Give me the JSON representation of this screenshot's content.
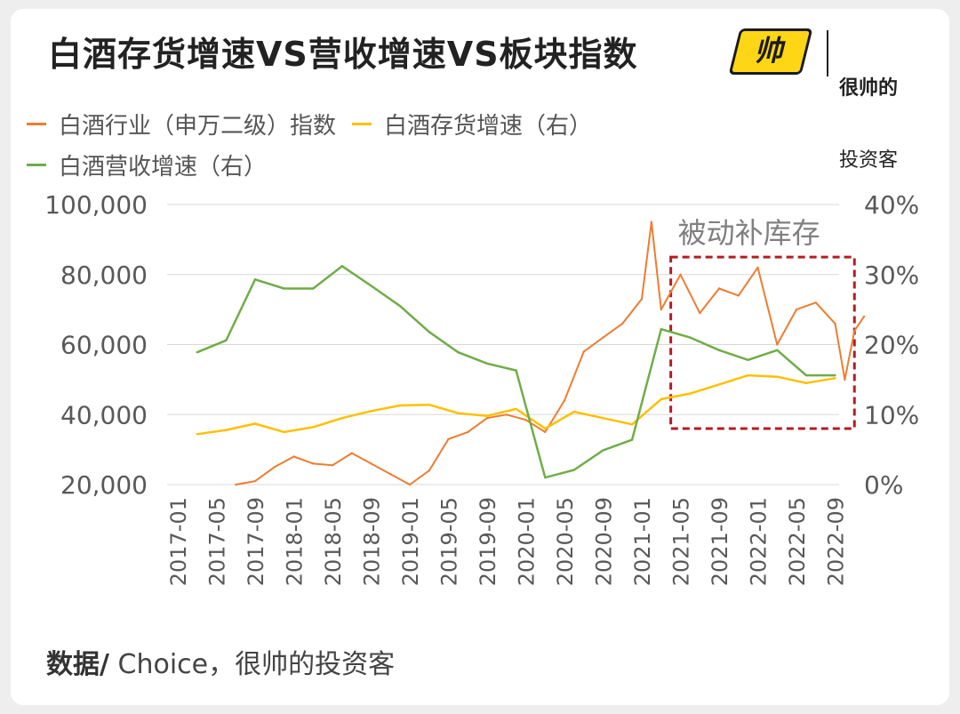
{
  "header": {
    "title": "白酒存货增速VS营收增速VS板块指数"
  },
  "logo": {
    "badge_text": "帅",
    "line1": "很帅的",
    "line2": "投资客",
    "badge_color": "#ffd616"
  },
  "footer": {
    "source_label": "数据/",
    "source_text": " Choice，很帅的投资客"
  },
  "chart_data": {
    "type": "line",
    "title": "白酒存货增速VS营收增速VS板块指数",
    "x_ticks": [
      "2017-01",
      "2017-05",
      "2017-09",
      "2018-01",
      "2018-05",
      "2018-09",
      "2019-01",
      "2019-05",
      "2019-09",
      "2020-01",
      "2020-05",
      "2020-09",
      "2021-01",
      "2021-05",
      "2021-09",
      "2022-01",
      "2022-05",
      "2022-09"
    ],
    "y_left": {
      "ticks": [
        "20,000",
        "40,000",
        "60,000",
        "80,000",
        "100,000"
      ],
      "range": [
        20000,
        100000
      ]
    },
    "y_right": {
      "ticks": [
        "0%",
        "10%",
        "20%",
        "30%",
        "40%"
      ],
      "range": [
        0,
        40
      ]
    },
    "legend_position": "top-left",
    "grid": "horizontal",
    "annotation": {
      "text": "被动补库存",
      "x_start": "2021-04",
      "x_end": "2022-11",
      "y_top_pct": 32.5,
      "y_bottom_pct": 8,
      "color": "#b01e23"
    },
    "series": [
      {
        "name": "白酒行业（申万二级）指数",
        "axis": "left",
        "color": "#ed7d31",
        "x": [
          "2017-07",
          "2017-09",
          "2017-11",
          "2018-01",
          "2018-03",
          "2018-05",
          "2018-07",
          "2018-09",
          "2018-11",
          "2019-01",
          "2019-03",
          "2019-05",
          "2019-07",
          "2019-09",
          "2019-11",
          "2020-01",
          "2020-03",
          "2020-05",
          "2020-07",
          "2020-09",
          "2020-11",
          "2021-01",
          "2021-02",
          "2021-03",
          "2021-05",
          "2021-07",
          "2021-09",
          "2021-11",
          "2022-01",
          "2022-03",
          "2022-05",
          "2022-07",
          "2022-09",
          "2022-10",
          "2022-11",
          "2022-12"
        ],
        "values": [
          20000,
          21000,
          25000,
          28000,
          26000,
          25500,
          29000,
          26000,
          23000,
          20000,
          24000,
          33000,
          35000,
          39000,
          40000,
          38500,
          35000,
          44000,
          58000,
          62000,
          66000,
          73000,
          95000,
          70000,
          80000,
          69000,
          76000,
          74000,
          82000,
          60000,
          70000,
          72000,
          66000,
          50000,
          64000,
          68000
        ]
      },
      {
        "name": "白酒存货增速（右）",
        "axis": "right",
        "color": "#ffc000",
        "x": [
          "2017-03",
          "2017-06",
          "2017-09",
          "2017-12",
          "2018-03",
          "2018-06",
          "2018-09",
          "2018-12",
          "2019-03",
          "2019-06",
          "2019-09",
          "2019-12",
          "2020-03",
          "2020-06",
          "2020-09",
          "2020-12",
          "2021-03",
          "2021-06",
          "2021-09",
          "2021-12",
          "2022-03",
          "2022-06",
          "2022-09"
        ],
        "values": [
          7.2,
          7.8,
          8.7,
          7.5,
          8.2,
          9.5,
          10.5,
          11.3,
          11.4,
          10.2,
          9.8,
          10.8,
          8.0,
          10.4,
          9.5,
          8.6,
          12.2,
          13.0,
          14.3,
          15.6,
          15.4,
          14.5,
          15.2
        ]
      },
      {
        "name": "白酒营收增速（右）",
        "axis": "right",
        "color": "#70ad47",
        "x": [
          "2017-03",
          "2017-06",
          "2017-09",
          "2017-12",
          "2018-03",
          "2018-06",
          "2018-09",
          "2018-12",
          "2019-03",
          "2019-06",
          "2019-09",
          "2019-12",
          "2020-03",
          "2020-06",
          "2020-09",
          "2020-12",
          "2021-03",
          "2021-06",
          "2021-09",
          "2021-12",
          "2022-03",
          "2022-06",
          "2022-09"
        ],
        "values": [
          18.9,
          20.6,
          29.3,
          28.0,
          28.0,
          31.2,
          28.4,
          25.5,
          21.8,
          18.9,
          17.3,
          16.3,
          1.0,
          2.1,
          4.9,
          6.4,
          22.2,
          21.0,
          19.2,
          17.8,
          19.2,
          15.6,
          15.6
        ]
      }
    ]
  }
}
